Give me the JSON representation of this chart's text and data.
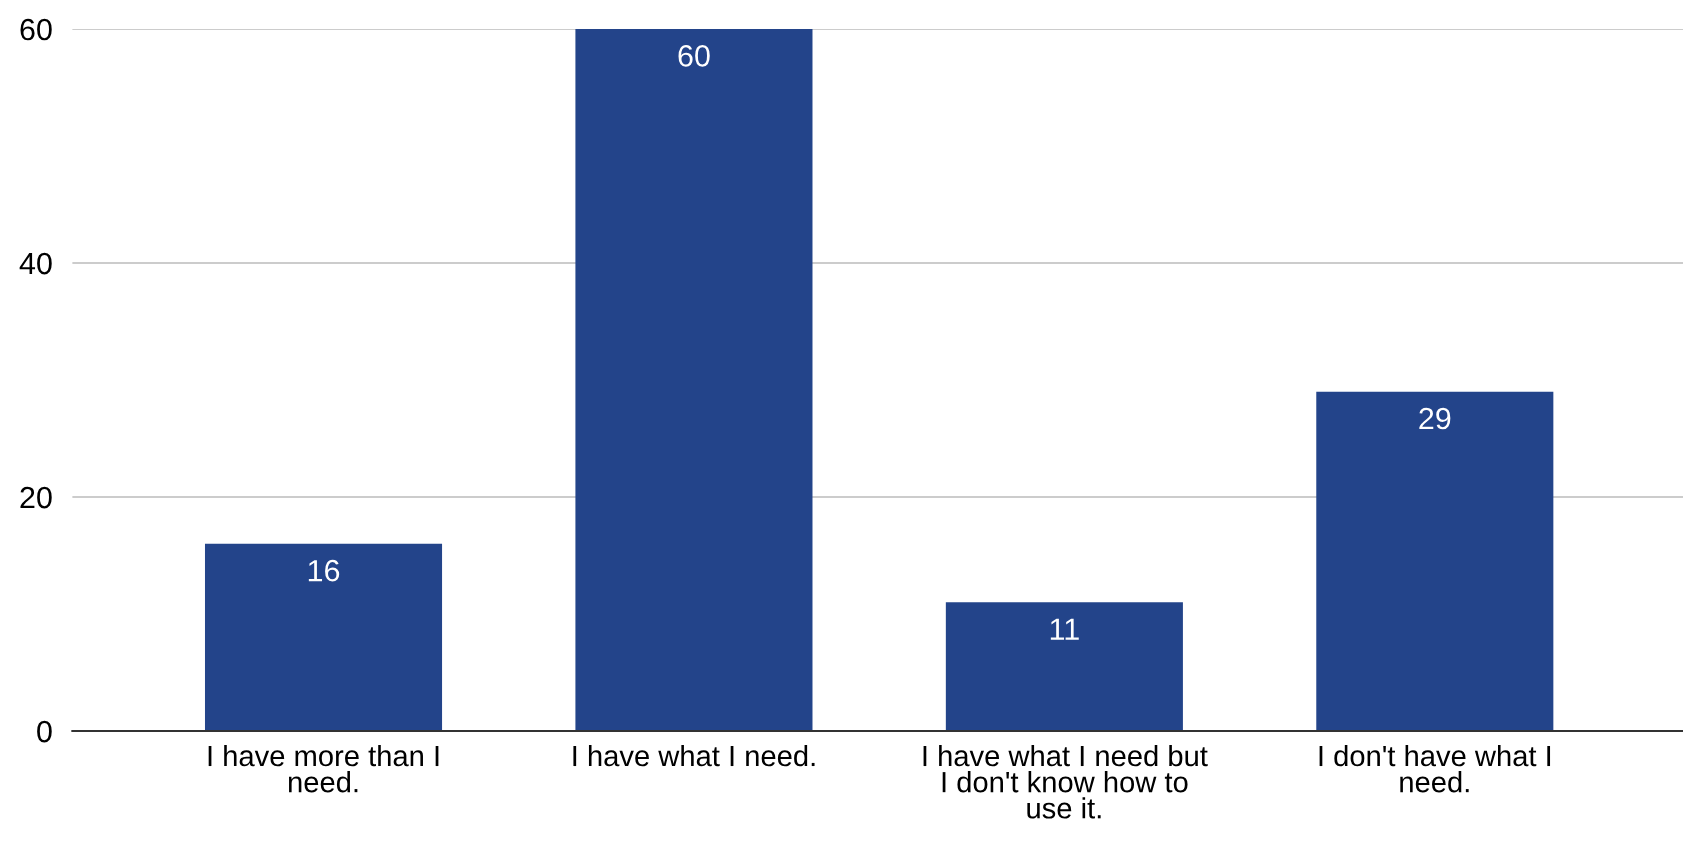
{
  "chart_data": {
    "type": "bar",
    "categories": [
      "I have more than I\nneed.",
      "I have what I need.",
      "I have what I need but\nI don't know how to\nuse it.",
      "I don't have what I\nneed."
    ],
    "values": [
      16,
      60,
      11,
      29
    ],
    "color": "#23448a",
    "ylim": [
      0,
      60
    ],
    "yticks": [
      0,
      20,
      40,
      60
    ],
    "grid": "y",
    "data_labels": true,
    "legend": false
  }
}
